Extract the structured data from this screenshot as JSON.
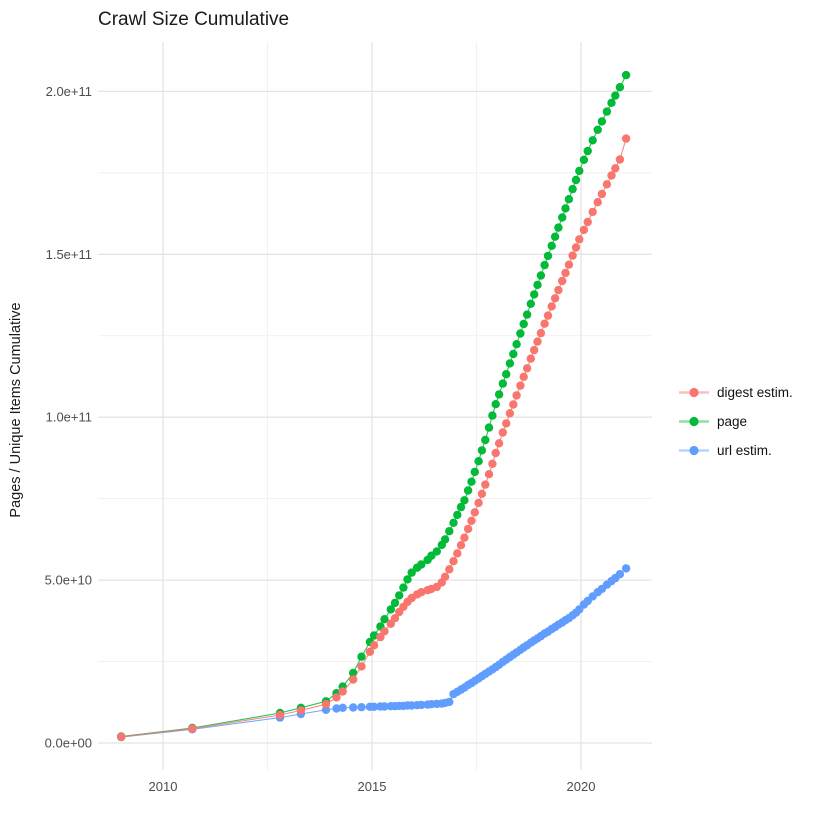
{
  "chart": {
    "title": "Crawl Size Cumulative",
    "y_axis_label": "Pages / Unique Items Cumulative"
  },
  "colors": {
    "background": "#ffffff",
    "grid_major": "#e4e4e4",
    "grid_minor": "#f1f1f1",
    "tick_text": "#4d4d4d",
    "text": "#1a1a1a",
    "digest": "#F8766D",
    "page": "#00BA38",
    "url": "#619CFF"
  },
  "chart_data": {
    "type": "scatter",
    "title": "Crawl Size Cumulative",
    "xlabel": "",
    "ylabel": "Pages / Unique Items Cumulative",
    "x_unit": "year (fractional, crawl date)",
    "value_unit": "count; values_e9 are in billions (multiply by 1e9)",
    "xlim": [
      2008.44,
      2021.68
    ],
    "ylim_e9": [
      -8,
      215
    ],
    "grid": true,
    "legend_position": "right",
    "x_ticks": {
      "major": [
        2010,
        2015,
        2020
      ],
      "major_labels": [
        "2010",
        "2015",
        "2020"
      ],
      "minor": [
        2012.5,
        2017.5
      ]
    },
    "y_ticks": {
      "major_e9": [
        0,
        50,
        100,
        150,
        200
      ],
      "major_labels": [
        "0.0e+00",
        "5.0e+10",
        "1.0e+11",
        "1.5e+11",
        "2.0e+11"
      ],
      "minor_e9": [
        25,
        75,
        125,
        175
      ]
    },
    "x": [
      2009.0,
      2010.7,
      2012.8,
      2013.3,
      2013.9,
      2014.15,
      2014.3,
      2014.55,
      2014.75,
      2014.95,
      2015.05,
      2015.2,
      2015.3,
      2015.45,
      2015.55,
      2015.65,
      2015.75,
      2015.85,
      2015.95,
      2016.08,
      2016.18,
      2016.33,
      2016.42,
      2016.55,
      2016.67,
      2016.75,
      2016.85,
      2016.95,
      2017.04,
      2017.13,
      2017.21,
      2017.3,
      2017.38,
      2017.46,
      2017.55,
      2017.63,
      2017.71,
      2017.8,
      2017.88,
      2017.96,
      2018.04,
      2018.13,
      2018.21,
      2018.3,
      2018.38,
      2018.46,
      2018.55,
      2018.63,
      2018.71,
      2018.8,
      2018.88,
      2018.96,
      2019.04,
      2019.13,
      2019.21,
      2019.3,
      2019.38,
      2019.46,
      2019.55,
      2019.63,
      2019.71,
      2019.8,
      2019.88,
      2019.96,
      2020.07,
      2020.16,
      2020.28,
      2020.4,
      2020.5,
      2020.62,
      2020.73,
      2020.82,
      2020.93,
      2021.08
    ],
    "series": [
      {
        "name": "digest estim.",
        "color": "#F8766D",
        "values_e9": [
          1.9,
          4.4,
          8.6,
          10.0,
          11.9,
          14.0,
          15.8,
          19.5,
          23.5,
          28.0,
          30.0,
          32.5,
          34.3,
          36.6,
          38.3,
          40.2,
          41.8,
          43.3,
          44.5,
          45.6,
          46.3,
          46.9,
          47.3,
          47.9,
          49.3,
          51.0,
          53.3,
          55.8,
          58.2,
          60.7,
          63.0,
          65.7,
          68.2,
          70.8,
          73.7,
          76.5,
          79.3,
          82.5,
          85.7,
          89.0,
          92.0,
          95.3,
          98.1,
          101.2,
          103.9,
          106.7,
          109.7,
          112.4,
          115.0,
          118.0,
          120.6,
          123.2,
          125.8,
          128.7,
          131.2,
          134.0,
          136.5,
          139.0,
          141.8,
          144.3,
          146.8,
          149.6,
          152.1,
          154.6,
          157.5,
          159.9,
          163.0,
          166.0,
          168.5,
          171.5,
          174.2,
          176.4,
          179.1,
          185.5
        ]
      },
      {
        "name": "page",
        "color": "#00BA38",
        "values_e9": [
          2.0,
          4.6,
          9.2,
          10.8,
          12.8,
          15.3,
          17.3,
          21.5,
          26.5,
          31.0,
          33.0,
          35.8,
          38.0,
          41.0,
          43.0,
          45.3,
          47.7,
          50.2,
          52.3,
          53.8,
          54.8,
          56.2,
          57.5,
          58.8,
          60.8,
          62.5,
          65.0,
          67.6,
          70.0,
          72.4,
          74.5,
          77.5,
          80.2,
          83.2,
          86.5,
          89.8,
          93.0,
          96.8,
          100.5,
          104.0,
          107.0,
          110.3,
          113.2,
          116.5,
          119.4,
          122.4,
          125.7,
          128.6,
          131.5,
          134.8,
          137.7,
          140.6,
          143.5,
          146.7,
          149.5,
          152.6,
          155.4,
          158.2,
          161.3,
          164.1,
          166.9,
          170.0,
          172.8,
          175.6,
          179.0,
          181.7,
          185.0,
          188.2,
          190.8,
          193.8,
          196.5,
          198.7,
          201.3,
          205.0
        ]
      },
      {
        "name": "url estim.",
        "color": "#619CFF",
        "values_e9": [
          1.8,
          4.2,
          7.8,
          8.9,
          10.2,
          10.6,
          10.8,
          10.9,
          11.0,
          11.1,
          11.1,
          11.2,
          11.2,
          11.3,
          11.3,
          11.4,
          11.4,
          11.5,
          11.5,
          11.6,
          11.7,
          11.8,
          11.9,
          12.0,
          12.1,
          12.3,
          12.6,
          15.0,
          15.7,
          16.4,
          17.0,
          17.8,
          18.4,
          19.1,
          19.8,
          20.5,
          21.2,
          21.9,
          22.6,
          23.3,
          24.0,
          24.9,
          25.6,
          26.4,
          27.1,
          27.8,
          28.6,
          29.3,
          30.0,
          30.8,
          31.5,
          32.1,
          32.8,
          33.6,
          34.2,
          35.0,
          35.6,
          36.3,
          37.0,
          37.7,
          38.3,
          39.2,
          40.0,
          41.0,
          42.5,
          43.6,
          45.0,
          46.3,
          47.3,
          48.6,
          49.7,
          50.6,
          51.8,
          53.6
        ]
      }
    ],
    "draw_order": [
      2,
      1,
      0
    ],
    "legend": [
      {
        "label": "digest estim.",
        "color": "#F8766D"
      },
      {
        "label": "page",
        "color": "#00BA38"
      },
      {
        "label": "url estim.",
        "color": "#619CFF"
      }
    ]
  }
}
